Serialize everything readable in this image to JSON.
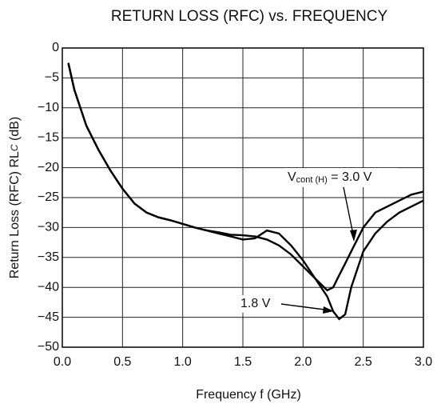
{
  "chart_data": {
    "type": "line",
    "title": "RETURN LOSS (RFC) vs. FREQUENCY",
    "x_label": "Frequency  f (GHz)",
    "y_label": [
      "Return Loss (RFC)  RL",
      "C",
      " (dB)"
    ],
    "annotations": [
      [
        "V",
        "cont (H)",
        " = 3.0 V"
      ],
      [
        "1.8 V"
      ]
    ],
    "x": [
      0.05,
      0.1,
      0.2,
      0.3,
      0.4,
      0.5,
      0.6,
      0.7,
      0.8,
      0.9,
      1.0,
      1.1,
      1.2,
      1.3,
      1.4,
      1.5,
      1.6,
      1.7,
      1.8,
      1.9,
      2.0,
      2.1,
      2.2,
      2.25,
      2.3,
      2.35,
      2.4,
      2.5,
      2.6,
      2.7,
      2.8,
      2.9,
      3.0
    ],
    "series": [
      {
        "color": "#000000",
        "values": [
          -2.5,
          -7,
          -13,
          -17,
          -20.5,
          -23.5,
          -26,
          -27.5,
          -28.3,
          -28.8,
          -29.4,
          -30,
          -30.5,
          -31,
          -31.5,
          -32,
          -31.8,
          -30.5,
          -31,
          -33,
          -35.5,
          -38.5,
          -40.5,
          -40,
          -38,
          -36,
          -34,
          -30,
          -27.5,
          -26.5,
          -25.5,
          -24.5,
          -24
        ]
      },
      {
        "color": "#000000",
        "values": [
          -2.5,
          -7,
          -13,
          -17,
          -20.5,
          -23.5,
          -26,
          -27.5,
          -28.3,
          -28.8,
          -29.4,
          -30,
          -30.5,
          -30.8,
          -31.2,
          -31.3,
          -31.5,
          -32,
          -33,
          -34.5,
          -36.5,
          -38.5,
          -41.5,
          -44,
          -45.3,
          -44.5,
          -40,
          -34,
          -31,
          -29,
          -27.5,
          -26.5,
          -25.5
        ]
      }
    ],
    "xlim": [
      0,
      3
    ],
    "ylim": [
      -50,
      0
    ],
    "xticks": [
      {
        "value": 0,
        "label": "0.0"
      },
      0.5,
      {
        "value": 1,
        "label": "1.0"
      },
      1.5,
      {
        "value": 2,
        "label": "2.0"
      },
      2.5,
      {
        "value": 3,
        "label": "3.0"
      }
    ],
    "yticks": [
      0,
      {
        "value": -5,
        "label": "−5"
      },
      {
        "value": -10,
        "label": "−10"
      },
      {
        "value": -15,
        "label": "−15"
      },
      {
        "value": -20,
        "label": "−20"
      },
      {
        "value": -25,
        "label": "−25"
      },
      {
        "value": -30,
        "label": "−30"
      },
      {
        "value": -35,
        "label": "−35"
      },
      {
        "value": -40,
        "label": "−40"
      },
      {
        "value": -45,
        "label": "−45"
      },
      {
        "value": -50,
        "label": "−50"
      }
    ],
    "grid": true
  }
}
